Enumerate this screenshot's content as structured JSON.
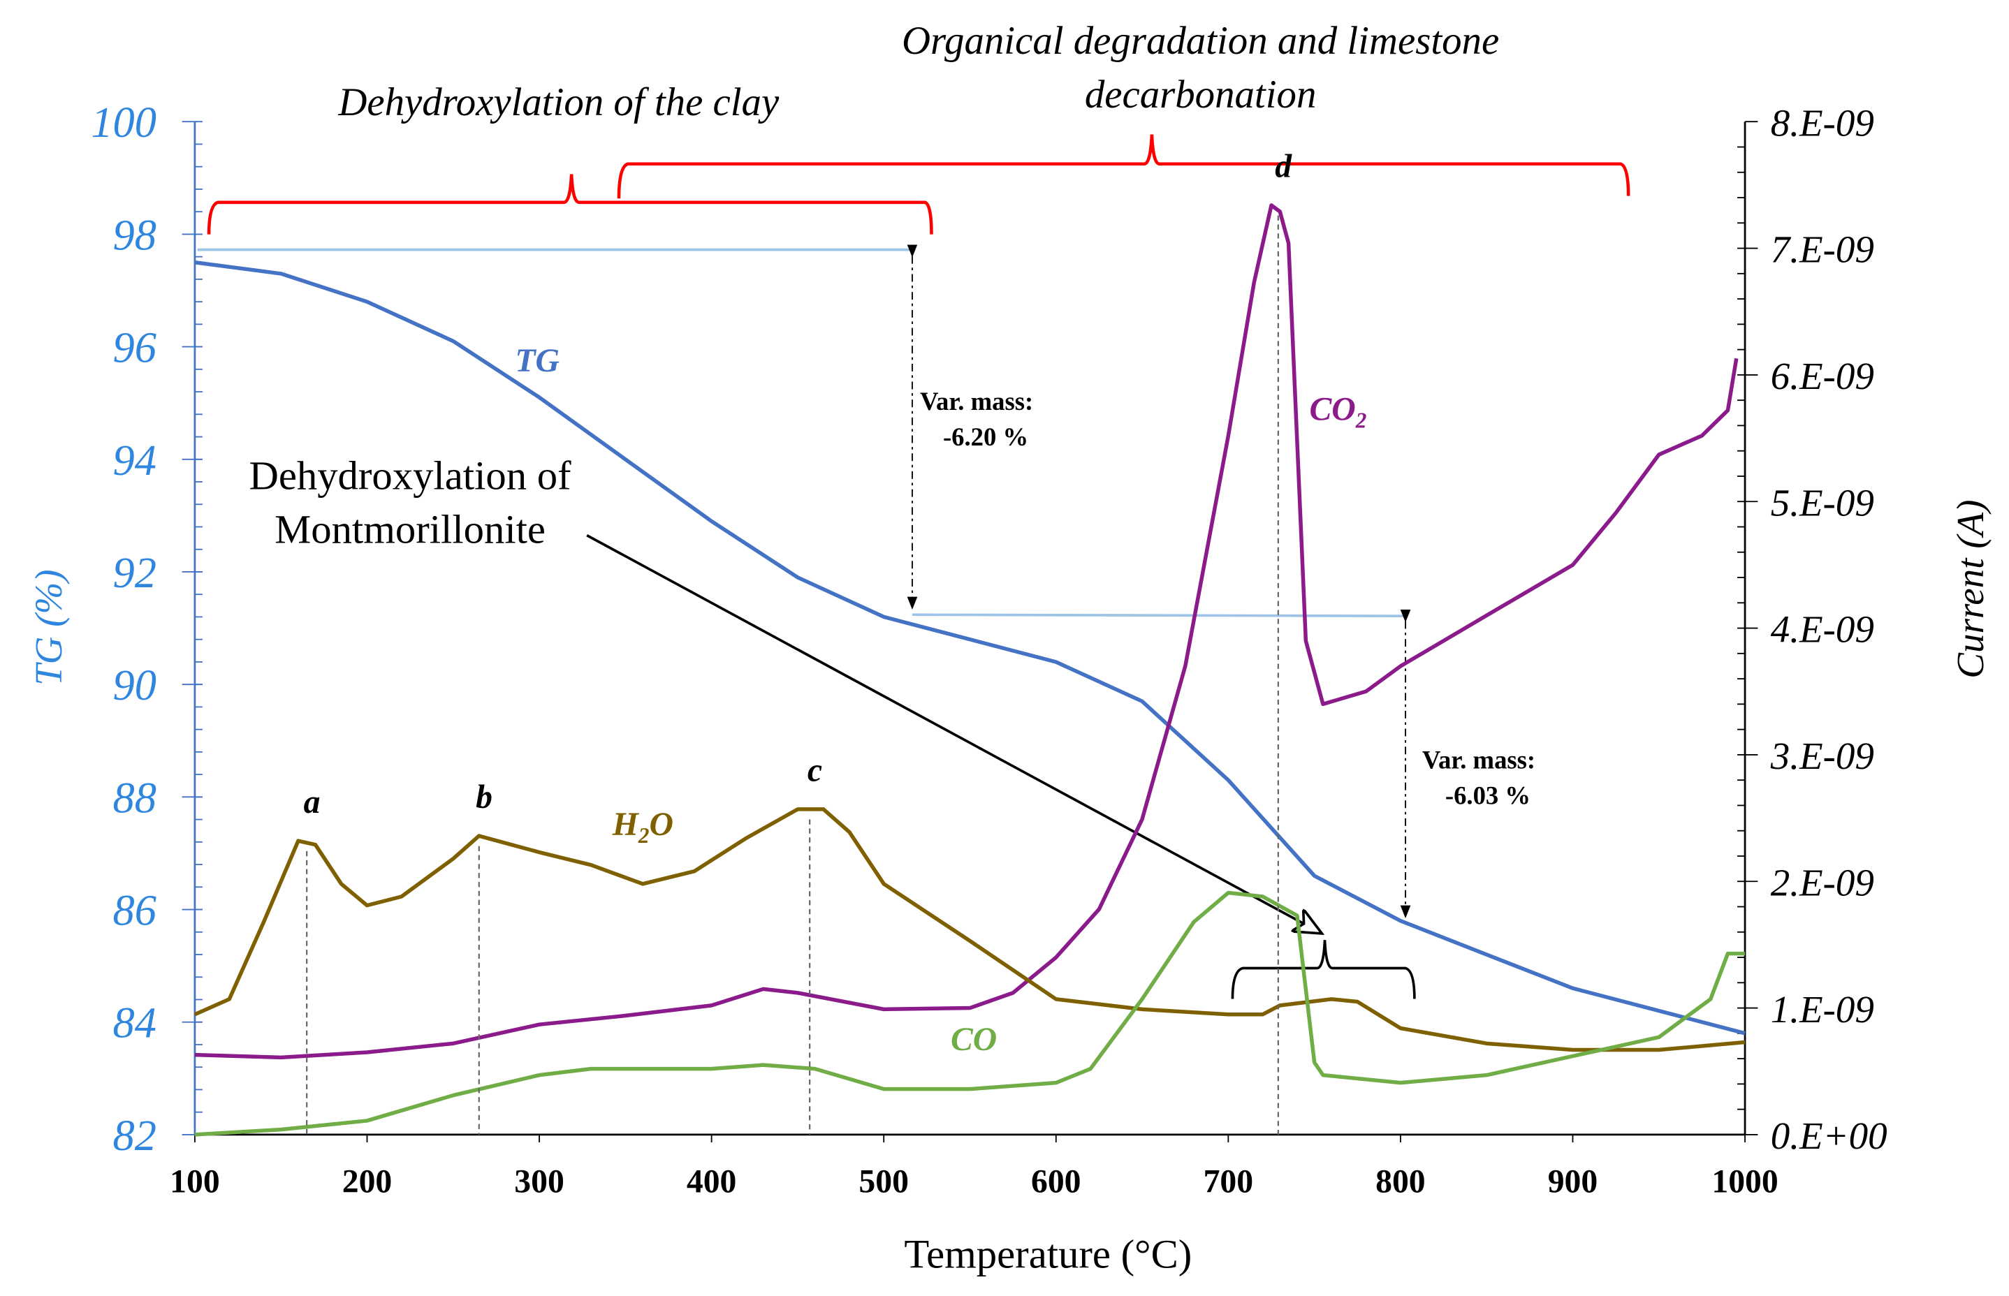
{
  "chart_data": {
    "type": "line",
    "xlabel": "Temperature (°C)",
    "ylabel_left": "TG (%)",
    "ylabel_right": "Current (A)",
    "xlim": [
      100,
      1000
    ],
    "ylim_left": [
      82,
      100
    ],
    "ylim_right": [
      0,
      8e-09
    ],
    "x_ticks": [
      "100",
      "200",
      "300",
      "400",
      "500",
      "600",
      "700",
      "800",
      "900",
      "1000"
    ],
    "y_ticks_left": [
      "82",
      "84",
      "86",
      "88",
      "90",
      "92",
      "94",
      "96",
      "98",
      "100"
    ],
    "y_ticks_right": [
      "0.E+00",
      "1.E-09",
      "2.E-09",
      "3.E-09",
      "4.E-09",
      "5.E-09",
      "6.E-09",
      "7.E-09",
      "8.E-09"
    ],
    "colors": {
      "TG": "#4472c4",
      "CO2": "#8b1a8b",
      "H2O": "#7f6000",
      "CO": "#70ad47",
      "axis_left": "#2e86de",
      "bracket": "#ff0000",
      "guide": "#9dc3e6"
    },
    "series": [
      {
        "name": "TG",
        "label": "TG",
        "axis": "left",
        "x": [
          100,
          150,
          200,
          250,
          300,
          350,
          400,
          450,
          500,
          550,
          600,
          650,
          700,
          750,
          800,
          850,
          900,
          950,
          1000
        ],
        "y": [
          97.5,
          97.3,
          96.8,
          96.1,
          95.1,
          94.0,
          92.9,
          91.9,
          91.2,
          90.8,
          90.4,
          89.7,
          88.3,
          86.6,
          85.8,
          85.2,
          84.6,
          84.2,
          83.8
        ]
      },
      {
        "name": "CO2",
        "label": "CO",
        "label_sub": "2",
        "axis": "right",
        "unit": "1e-9 A",
        "x": [
          100,
          150,
          200,
          250,
          300,
          350,
          400,
          430,
          450,
          500,
          550,
          575,
          600,
          625,
          650,
          675,
          700,
          715,
          725,
          730,
          735,
          745,
          755,
          780,
          800,
          850,
          900,
          925,
          950,
          975,
          990,
          995
        ],
        "y": [
          0.63,
          0.61,
          0.65,
          0.72,
          0.87,
          0.94,
          1.02,
          1.15,
          1.12,
          0.99,
          1.0,
          1.12,
          1.4,
          1.78,
          2.49,
          3.7,
          5.52,
          6.73,
          7.34,
          7.29,
          7.04,
          3.9,
          3.4,
          3.5,
          3.7,
          4.1,
          4.5,
          4.91,
          5.37,
          5.52,
          5.72,
          6.13
        ]
      },
      {
        "name": "H2O",
        "label": "H",
        "label_sub": "2",
        "label_tail": "O",
        "axis": "right",
        "unit": "1e-9 A",
        "x": [
          100,
          120,
          140,
          160,
          170,
          185,
          200,
          220,
          250,
          265,
          300,
          330,
          360,
          390,
          420,
          450,
          465,
          480,
          500,
          550,
          600,
          650,
          700,
          720,
          730,
          760,
          775,
          800,
          850,
          900,
          950,
          1000
        ],
        "y": [
          0.95,
          1.07,
          1.68,
          2.32,
          2.29,
          1.98,
          1.81,
          1.88,
          2.18,
          2.36,
          2.23,
          2.13,
          1.98,
          2.08,
          2.34,
          2.57,
          2.57,
          2.39,
          1.98,
          1.53,
          1.07,
          0.99,
          0.95,
          0.95,
          1.02,
          1.07,
          1.05,
          0.84,
          0.72,
          0.67,
          0.67,
          0.73
        ]
      },
      {
        "name": "CO",
        "label": "CO",
        "axis": "right",
        "unit": "1e-9 A",
        "x": [
          100,
          150,
          200,
          250,
          300,
          330,
          400,
          430,
          460,
          500,
          550,
          600,
          620,
          650,
          680,
          700,
          720,
          740,
          750,
          755,
          800,
          850,
          900,
          950,
          980,
          990,
          1000
        ],
        "y": [
          0,
          0.04,
          0.11,
          0.31,
          0.47,
          0.52,
          0.52,
          0.55,
          0.52,
          0.36,
          0.36,
          0.41,
          0.52,
          1.07,
          1.68,
          1.91,
          1.88,
          1.73,
          0.57,
          0.47,
          0.41,
          0.47,
          0.62,
          0.77,
          1.07,
          1.43,
          1.43
        ]
      }
    ],
    "peaks": [
      {
        "label": "a",
        "x": 165,
        "y": 2.32
      },
      {
        "label": "b",
        "x": 265,
        "y": 2.36
      },
      {
        "label": "c",
        "x": 457,
        "y": 2.57
      },
      {
        "label": "d",
        "x": 729,
        "y": 7.34
      }
    ],
    "annotations": {
      "region1": "Dehydroxylation of the clay",
      "region2_line1": "Organical degradation and limestone",
      "region2_line2": "decarbonation",
      "montmorillonite_line1": "Dehydroxylation of",
      "montmorillonite_line2": "Montmorillonite",
      "mass1_line1": "Var. mass:",
      "mass1_line2": "-6.20 %",
      "mass2_line1": "Var. mass:",
      "mass2_line2": "-6.03 %"
    }
  }
}
